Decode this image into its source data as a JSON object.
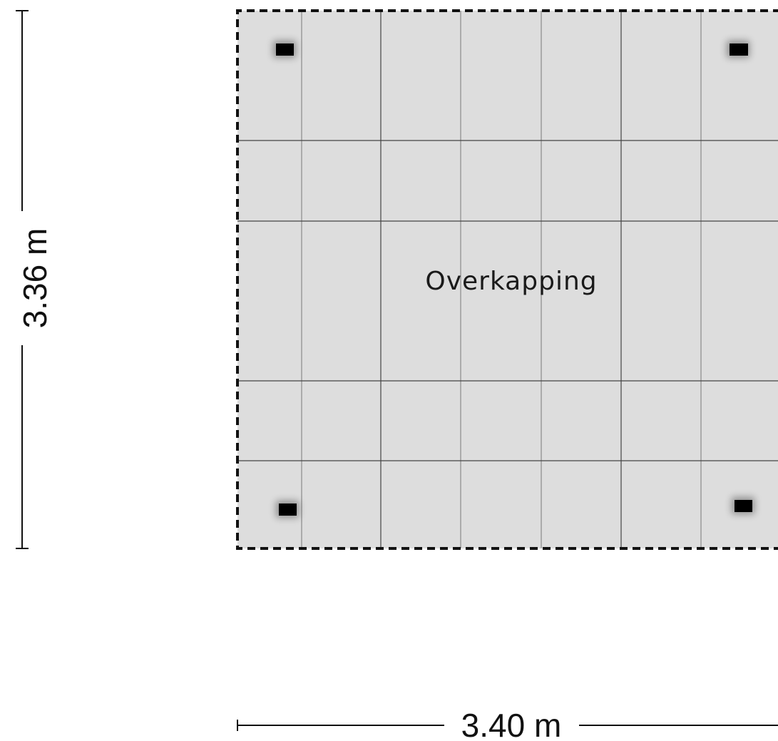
{
  "room": {
    "name": "Overkapping",
    "fill_color": "#dddddd",
    "border_style": "dashed",
    "posts": 4
  },
  "dimensions": {
    "height_label": "3.36 m",
    "width_label": "3.40 m"
  }
}
